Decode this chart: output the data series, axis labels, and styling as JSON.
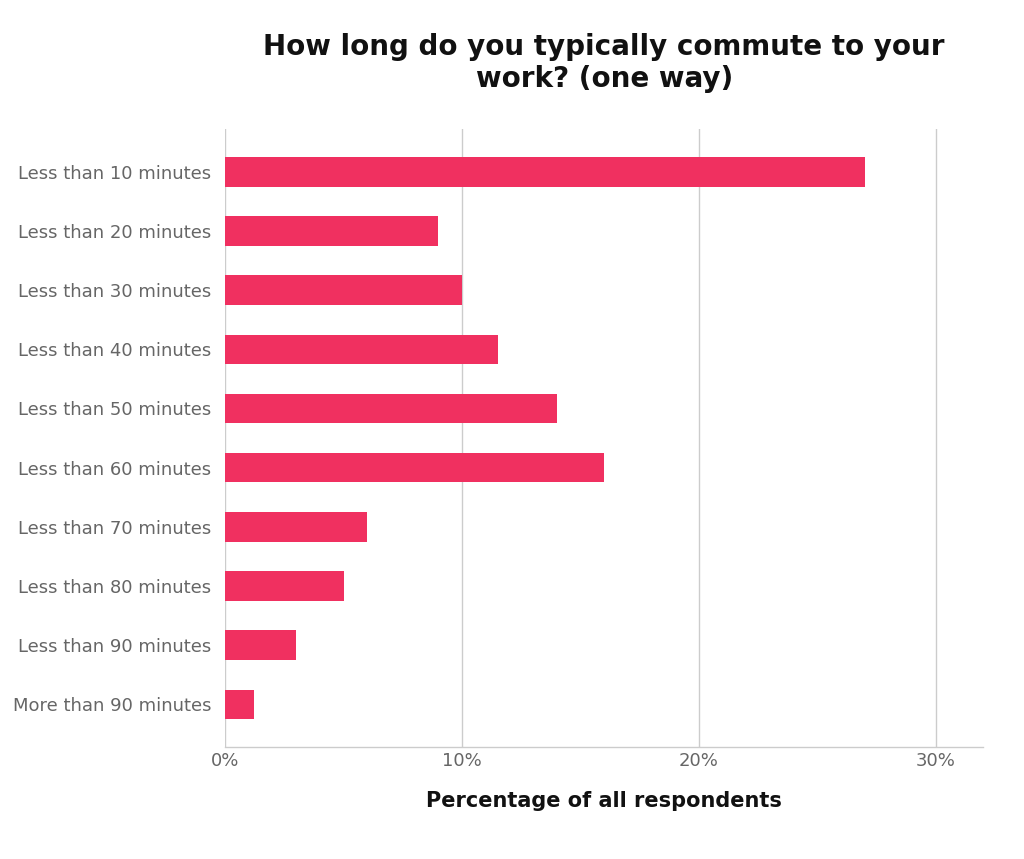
{
  "categories": [
    "Less than 10 minutes",
    "Less than 20 minutes",
    "Less than 30 minutes",
    "Less than 40 minutes",
    "Less than 50 minutes",
    "Less than 60 minutes",
    "Less than 70 minutes",
    "Less than 80 minutes",
    "Less than 90 minutes",
    "More than 90 minutes"
  ],
  "values": [
    27.0,
    9.0,
    10.0,
    11.5,
    14.0,
    16.0,
    6.0,
    5.0,
    3.0,
    1.2
  ],
  "bar_color": "#F03060",
  "background_color": "#FFFFFF",
  "title": "How long do you typically commute to your\nwork? (one way)",
  "xlabel": "Percentage of all respondents",
  "xlim": [
    0,
    32
  ],
  "xtick_values": [
    0,
    10,
    20,
    30
  ],
  "xtick_labels": [
    "0%",
    "10%",
    "20%",
    "30%"
  ],
  "title_fontsize": 20,
  "xlabel_fontsize": 15,
  "tick_label_fontsize": 13,
  "ytick_fontsize": 13,
  "grid_color": "#CCCCCC",
  "spine_color": "#CCCCCC",
  "label_color": "#666666",
  "title_color": "#111111",
  "bar_height": 0.5
}
